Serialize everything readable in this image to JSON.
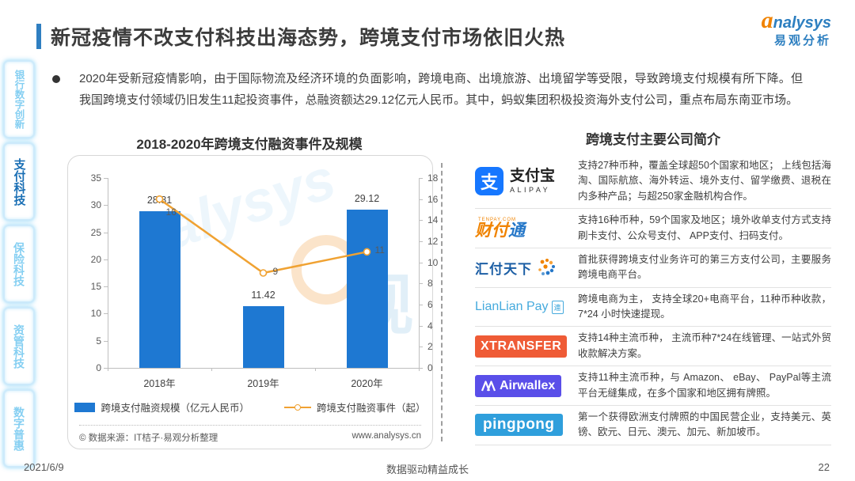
{
  "header": {
    "title": "新冠疫情不改支付科技出海态势，跨境支付市场依旧火热",
    "logo": {
      "brand_a": "a",
      "brand_rest": "nalysys",
      "brand_cn": "易观分析"
    }
  },
  "sidebar": {
    "items": [
      {
        "label": "银行数字创新",
        "active": false
      },
      {
        "label": "支付科技",
        "active": true
      },
      {
        "label": "保险科技",
        "active": false
      },
      {
        "label": "资管科技",
        "active": false
      },
      {
        "label": "数字普惠",
        "active": false
      }
    ]
  },
  "bullet": {
    "text": "2020年受新冠疫情影响，由于国际物流及经济环境的负面影响，跨境电商、出境旅游、出境留学等受限，导致跨境支付规模有所下降。但我国跨境支付领域仍旧发生11起投资事件，总融资额达29.12亿元人民币。其中，蚂蚁集团积极投资海外支付公司，重点布局东南亚市场。"
  },
  "chart_data": {
    "type": "bar",
    "title": "2018-2020年跨境支付融资事件及规模",
    "categories": [
      "2018年",
      "2019年",
      "2020年"
    ],
    "series": [
      {
        "name": "跨境支付融资规模（亿元人民币）",
        "type": "bar",
        "axis": "left",
        "values": [
          28.81,
          11.42,
          29.12
        ],
        "color": "#1e78d2"
      },
      {
        "name": "跨境支付融资事件（起）",
        "type": "line",
        "axis": "right",
        "values": [
          16,
          9,
          11
        ],
        "color": "#f0a232"
      }
    ],
    "left_axis": {
      "min": 0,
      "max": 35,
      "step": 5
    },
    "right_axis": {
      "min": 0,
      "max": 18,
      "step": 2
    },
    "grid": false,
    "legend_position": "bottom",
    "source": "© 数据来源：IT桔子·易观分析整理",
    "website": "www.analysys.cn",
    "watermark": {
      "letters": "alysys",
      "cn": "观"
    }
  },
  "companies": {
    "title": "跨境支付主要公司简介",
    "logos": {
      "alipay": {
        "square_char": "支",
        "name_cn": "支付宝",
        "name_en": "ALIPAY"
      },
      "tenpay": {
        "small": "TENPAY.COM",
        "text_orange": "财付",
        "text_blue": "通"
      },
      "huifu": {
        "text": "汇付天下"
      },
      "lianlian": {
        "text": "LianLian Pay",
        "badge": "連"
      },
      "xtransfer": {
        "text": "XTRANSFER"
      },
      "airwallex": {
        "text": "Airwallex"
      },
      "pingpong": {
        "text": "pingpong"
      }
    },
    "rows": [
      {
        "company": "alipay",
        "desc": "支持27种币种，覆盖全球超50个国家和地区； 上线包括海淘、国际航旅、海外转运、境外支付、留学缴费、退税在内多种产品；与超250家金融机构合作。"
      },
      {
        "company": "tenpay",
        "desc": "支持16种币种，59个国家及地区；境外收单支付方式支持刷卡支付、公众号支付、 APP支付、扫码支付。"
      },
      {
        "company": "huifu",
        "desc": "首批获得跨境支付业务许可的第三方支付公司，主要服务跨境电商平台。"
      },
      {
        "company": "lianlian",
        "desc": "跨境电商为主， 支持全球20+电商平台，11种币种收款，7*24 小时快速提现。"
      },
      {
        "company": "xtransfer",
        "desc": "支持14种主流币种， 主流币种7*24在线管理、一站式外贸收款解决方案。"
      },
      {
        "company": "airwallex",
        "desc": "支持11种主流币种，与 Amazon、 eBay、 PayPal等主流平台无缝集成，在多个国家和地区拥有牌照。"
      },
      {
        "company": "pingpong",
        "desc": "第一个获得欧洲支付牌照的中国民营企业，支持美元、英镑、欧元、日元、澳元、加元、新加坡币。"
      }
    ]
  },
  "footer": {
    "date": "2021/6/9",
    "motto": "数据驱动精益成长",
    "page": "22"
  }
}
